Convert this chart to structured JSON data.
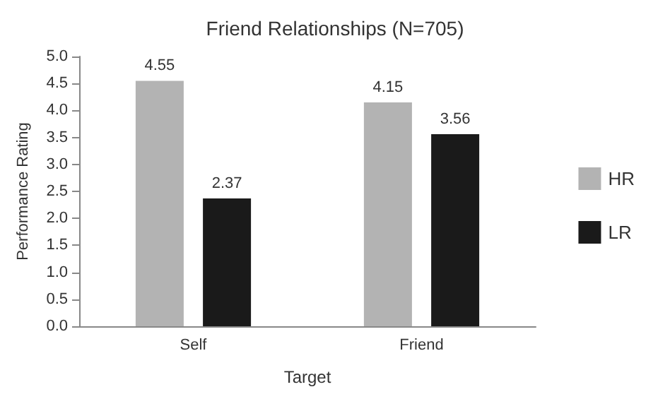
{
  "chart_data": {
    "type": "bar",
    "title": "Friend Relationships (N=705)",
    "xlabel": "Target",
    "ylabel": "Performance Rating",
    "categories": [
      "Self",
      "Friend"
    ],
    "series": [
      {
        "name": "HR",
        "color": "#b3b3b3",
        "values": [
          4.55,
          4.15
        ]
      },
      {
        "name": "LR",
        "color": "#1a1a1a",
        "values": [
          2.37,
          3.56
        ]
      }
    ],
    "ylim": [
      0,
      5
    ],
    "yticks": [
      {
        "value": 0,
        "label": "0.0"
      },
      {
        "value": 0.5,
        "label": "0.5"
      },
      {
        "value": 1,
        "label": "1.0"
      },
      {
        "value": 1.5,
        "label": "1.5"
      },
      {
        "value": 2,
        "label": "2.0"
      },
      {
        "value": 2.5,
        "label": "2.5"
      },
      {
        "value": 3,
        "label": "3.0"
      },
      {
        "value": 3.5,
        "label": "3.5"
      },
      {
        "value": 4,
        "label": "4.0"
      },
      {
        "value": 4.5,
        "label": "4.5"
      },
      {
        "value": 5,
        "label": "5.0"
      }
    ],
    "grid": false,
    "legend": "right",
    "data_labels": true
  }
}
